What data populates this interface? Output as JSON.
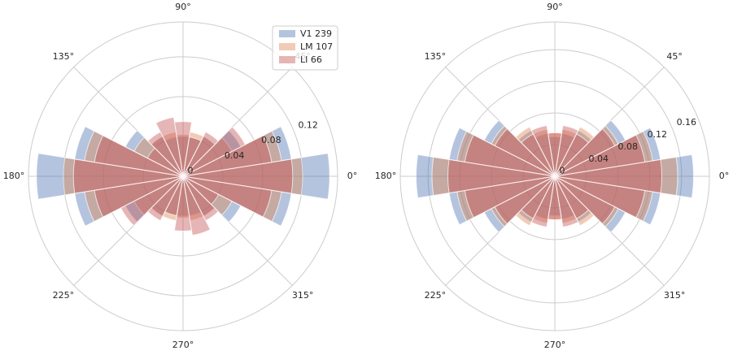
{
  "chart_data": [
    {
      "type": "polar-bar",
      "x": [
        0,
        18,
        36,
        54,
        72,
        90,
        108,
        126,
        144,
        162,
        180,
        198,
        216,
        234,
        252,
        270,
        288,
        306,
        324,
        342
      ],
      "xticks": [
        {
          "value": 0,
          "label": "0°"
        },
        {
          "value": 45,
          "label": "45°"
        },
        {
          "value": 90,
          "label": "90°"
        },
        {
          "value": 135,
          "label": "135°"
        },
        {
          "value": 180,
          "label": "180°"
        },
        {
          "value": 225,
          "label": "225°"
        },
        {
          "value": 270,
          "label": "270°"
        },
        {
          "value": 315,
          "label": "315°"
        }
      ],
      "ylim": [
        0,
        0.155
      ],
      "yticks": [
        0,
        0.04,
        0.08,
        0.12
      ],
      "legend": "upper right",
      "series": [
        {
          "name": "V1 239",
          "color": "#4c72b0",
          "values": [
            0.147,
            0.11,
            0.065,
            0.045,
            0.04,
            0.04,
            0.04,
            0.045,
            0.065,
            0.11,
            0.147,
            0.11,
            0.065,
            0.045,
            0.04,
            0.04,
            0.04,
            0.045,
            0.065,
            0.11
          ]
        },
        {
          "name": "LM 107",
          "color": "#dd8452",
          "values": [
            0.12,
            0.1,
            0.055,
            0.045,
            0.045,
            0.042,
            0.045,
            0.045,
            0.055,
            0.1,
            0.12,
            0.1,
            0.055,
            0.045,
            0.045,
            0.042,
            0.045,
            0.045,
            0.055,
            0.1
          ]
        },
        {
          "name": "LI 66",
          "color": "#c44e52",
          "values": [
            0.11,
            0.09,
            0.07,
            0.05,
            0.04,
            0.055,
            0.06,
            0.05,
            0.04,
            0.09,
            0.11,
            0.09,
            0.07,
            0.05,
            0.04,
            0.055,
            0.06,
            0.05,
            0.04,
            0.09
          ]
        }
      ]
    },
    {
      "type": "polar-bar",
      "x": [
        0,
        18,
        36,
        54,
        72,
        90,
        108,
        126,
        144,
        162,
        180,
        198,
        216,
        234,
        252,
        270,
        288,
        306,
        324,
        342
      ],
      "xticks": [
        {
          "value": 0,
          "label": "0°"
        },
        {
          "value": 45,
          "label": "45°"
        },
        {
          "value": 90,
          "label": "90°"
        },
        {
          "value": 135,
          "label": "135°"
        },
        {
          "value": 180,
          "label": "180°"
        },
        {
          "value": 225,
          "label": "225°"
        },
        {
          "value": 270,
          "label": "270°"
        },
        {
          "value": 315,
          "label": "315°"
        }
      ],
      "ylim": [
        0,
        0.195
      ],
      "yticks": [
        0,
        0.04,
        0.08,
        0.12,
        0.16
      ],
      "series": [
        {
          "color": "#4c72b0",
          "values": [
            0.175,
            0.135,
            0.1,
            0.065,
            0.055,
            0.05,
            0.055,
            0.065,
            0.1,
            0.135,
            0.175,
            0.135,
            0.1,
            0.065,
            0.055,
            0.05,
            0.055,
            0.065,
            0.1,
            0.135
          ]
        },
        {
          "color": "#dd8452",
          "values": [
            0.155,
            0.125,
            0.09,
            0.07,
            0.06,
            0.055,
            0.06,
            0.07,
            0.09,
            0.125,
            0.155,
            0.125,
            0.09,
            0.07,
            0.06,
            0.055,
            0.06,
            0.07,
            0.09,
            0.125
          ]
        },
        {
          "color": "#c44e52",
          "values": [
            0.135,
            0.115,
            0.085,
            0.06,
            0.065,
            0.055,
            0.065,
            0.06,
            0.085,
            0.115,
            0.135,
            0.115,
            0.085,
            0.06,
            0.065,
            0.055,
            0.065,
            0.06,
            0.085,
            0.115
          ]
        }
      ]
    }
  ]
}
